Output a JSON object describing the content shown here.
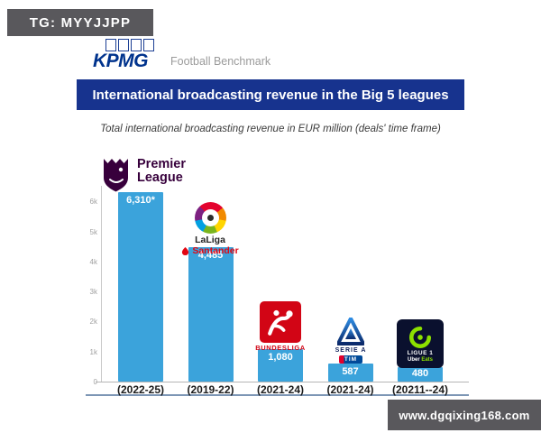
{
  "overlay": {
    "badge": "TG: MYYJJPP",
    "watermark": "www.dgqixing168.com"
  },
  "header": {
    "kpmg_logo_text": "KPMG",
    "kpmg_suffix": "Football Benchmark",
    "title": "International broadcasting revenue in the Big 5 leagues",
    "subtitle": "Total international broadcasting revenue in EUR million (deals' time frame)"
  },
  "logos": {
    "premier_league": {
      "line1": "Premier",
      "line2": "League"
    },
    "laliga": {
      "name": "LaLiga",
      "sponsor": "Santander"
    },
    "bundesliga": {
      "name": "BUNDESLIGA"
    },
    "serie_a": {
      "name": "SERIE A",
      "sponsor": "TIM"
    },
    "ligue1": {
      "name": "LIGUE 1",
      "sponsor_uber": "Uber",
      "sponsor_eats": "Eats"
    }
  },
  "chart_data": {
    "type": "bar",
    "title": "International broadcasting revenue in the Big 5 leagues",
    "subtitle": "Total international broadcasting revenue in EUR million (deals' time frame)",
    "unit": "EUR million",
    "categories": [
      "Premier League",
      "LaLiga Santander",
      "Bundesliga",
      "Serie A TIM",
      "Ligue 1 Uber Eats"
    ],
    "values": [
      6310,
      4485,
      1080,
      587,
      480
    ],
    "bar_labels": [
      "6,310*",
      "4,485",
      "1,080",
      "587",
      "480"
    ],
    "x_tick_labels": [
      "(2022-25)",
      "(2019-22)",
      "(2021-24)",
      "(2021-24)",
      "(20211--24)"
    ],
    "y_tick_labels": [
      "0",
      "1k",
      "2k",
      "3k",
      "4k",
      "5k",
      "6k"
    ],
    "ylim": [
      0,
      6400
    ],
    "bar_color": "#3BA3DB",
    "grid": false,
    "legend": false
  },
  "colors": {
    "banner_bg": "#17338E",
    "bar": "#3BA3DB",
    "badge_bg": "#59585C",
    "kpmg_blue": "#00338D",
    "bundesliga_red": "#D20515",
    "premier_purple": "#37003C",
    "ligue1_green": "#8CE000"
  }
}
